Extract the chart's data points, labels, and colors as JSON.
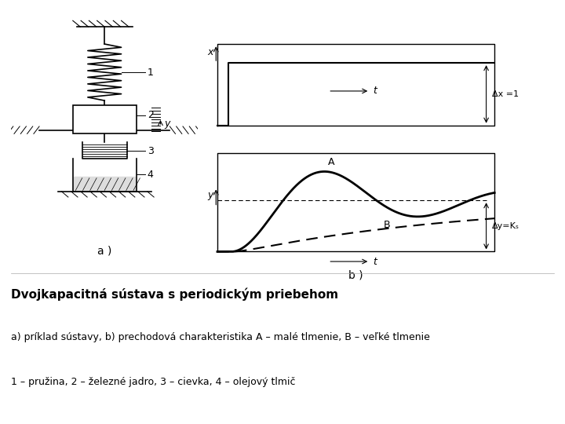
{
  "bg_color": "#ffffff",
  "title_bold": "Dvojkapacitná sústava s periodickým priebehom",
  "subtitle_line1": "a) príklad sústavy, b) prechodová charakteristika A – malé tlmenie, B – veľké tlmenie",
  "subtitle_line2": "1 – pružina, 2 – železné jadro, 3 – cievka, 4 – olejový tlmič",
  "label_a": "a )",
  "label_b": "b )",
  "annotation_dx": "Δx =1",
  "annotation_dy": "Δy=Kₛ",
  "label_A": "A",
  "label_B": "B"
}
